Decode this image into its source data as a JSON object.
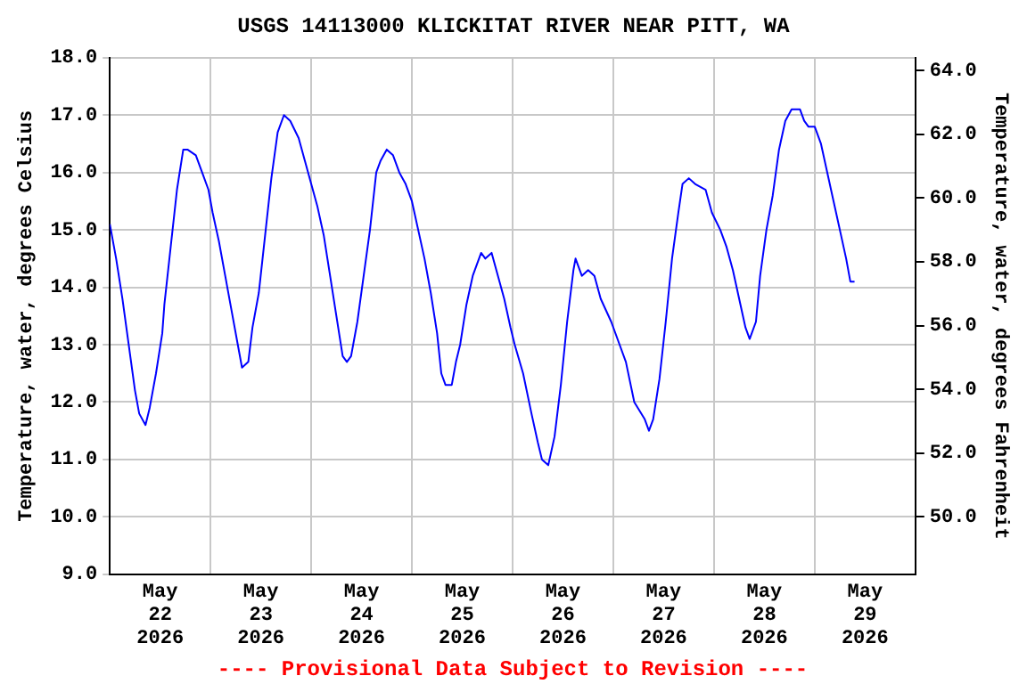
{
  "chart_data": {
    "type": "line",
    "title": "USGS 14113000 KLICKITAT RIVER NEAR PITT, WA",
    "ylabel": "Temperature, water, degrees Celsius",
    "y2label": "Temperature, water, degrees Fahrenheit",
    "annotations": [
      "---- Provisional Data Subject to Revision ----"
    ],
    "x": [
      "2026-05-22T00:00",
      "2026-05-22T01:30",
      "2026-05-22T03:00",
      "2026-05-22T04:30",
      "2026-05-22T06:00",
      "2026-05-22T07:00",
      "2026-05-22T08:30",
      "2026-05-22T09:30",
      "2026-05-22T11:00",
      "2026-05-22T12:30",
      "2026-05-22T13:00",
      "2026-05-22T14:30",
      "2026-05-22T16:00",
      "2026-05-22T17:30",
      "2026-05-22T18:30",
      "2026-05-22T20:30",
      "2026-05-22T22:00",
      "2026-05-22T23:30",
      "2026-05-23T00:30",
      "2026-05-23T02:00",
      "2026-05-23T03:30",
      "2026-05-23T05:00",
      "2026-05-23T06:30",
      "2026-05-23T07:30",
      "2026-05-23T09:00",
      "2026-05-23T10:00",
      "2026-05-23T11:30",
      "2026-05-23T13:00",
      "2026-05-23T14:30",
      "2026-05-23T16:00",
      "2026-05-23T17:30",
      "2026-05-23T19:00",
      "2026-05-23T21:00",
      "2026-05-23T22:30",
      "2026-05-24T00:00",
      "2026-05-24T01:30",
      "2026-05-24T03:00",
      "2026-05-24T04:30",
      "2026-05-24T06:00",
      "2026-05-24T07:30",
      "2026-05-24T08:30",
      "2026-05-24T09:30",
      "2026-05-24T11:00",
      "2026-05-24T12:30",
      "2026-05-24T14:00",
      "2026-05-24T15:30",
      "2026-05-24T16:30",
      "2026-05-24T18:00",
      "2026-05-24T19:30",
      "2026-05-24T21:00",
      "2026-05-24T22:30",
      "2026-05-25T00:00",
      "2026-05-25T01:30",
      "2026-05-25T03:00",
      "2026-05-25T04:30",
      "2026-05-25T06:00",
      "2026-05-25T07:00",
      "2026-05-25T08:00",
      "2026-05-25T09:30",
      "2026-05-25T10:30",
      "2026-05-25T11:30",
      "2026-05-25T13:00",
      "2026-05-25T14:30",
      "2026-05-25T16:30",
      "2026-05-25T17:30",
      "2026-05-25T19:00",
      "2026-05-25T20:30",
      "2026-05-25T22:00",
      "2026-05-25T23:30",
      "2026-05-26T00:30",
      "2026-05-26T02:30",
      "2026-05-26T04:30",
      "2026-05-26T06:00",
      "2026-05-26T07:00",
      "2026-05-26T08:30",
      "2026-05-26T10:00",
      "2026-05-26T11:30",
      "2026-05-26T13:00",
      "2026-05-26T14:30",
      "2026-05-26T15:00",
      "2026-05-26T16:30",
      "2026-05-26T18:00",
      "2026-05-26T19:30",
      "2026-05-26T21:00",
      "2026-05-26T23:30",
      "2026-05-27T01:30",
      "2026-05-27T03:00",
      "2026-05-27T05:00",
      "2026-05-27T07:30",
      "2026-05-27T08:30",
      "2026-05-27T09:30",
      "2026-05-27T11:00",
      "2026-05-27T12:30",
      "2026-05-27T14:00",
      "2026-05-27T15:30",
      "2026-05-27T16:30",
      "2026-05-27T18:00",
      "2026-05-27T19:30",
      "2026-05-27T22:00",
      "2026-05-27T23:30",
      "2026-05-28T01:30",
      "2026-05-28T03:00",
      "2026-05-28T04:30",
      "2026-05-28T06:00",
      "2026-05-28T07:30",
      "2026-05-28T08:30",
      "2026-05-28T10:00",
      "2026-05-28T11:00",
      "2026-05-28T12:30",
      "2026-05-28T14:00",
      "2026-05-28T15:30",
      "2026-05-28T17:00",
      "2026-05-28T18:30",
      "2026-05-28T20:30",
      "2026-05-28T21:30",
      "2026-05-28T22:30",
      "2026-05-29T00:00",
      "2026-05-29T01:30",
      "2026-05-29T03:00",
      "2026-05-29T04:30",
      "2026-05-29T06:00",
      "2026-05-29T07:30",
      "2026-05-29T08:30",
      "2026-05-29T09:30"
    ],
    "series": [
      {
        "color": "#0000ff",
        "values": [
          15.1,
          14.5,
          13.8,
          13.0,
          12.2,
          11.8,
          11.6,
          11.9,
          12.5,
          13.2,
          13.7,
          14.7,
          15.7,
          16.4,
          16.4,
          16.3,
          16.0,
          15.7,
          15.3,
          14.8,
          14.2,
          13.6,
          13.0,
          12.6,
          12.7,
          13.3,
          13.9,
          14.9,
          15.9,
          16.7,
          17.0,
          16.9,
          16.6,
          16.2,
          15.8,
          15.4,
          14.9,
          14.2,
          13.5,
          12.8,
          12.7,
          12.8,
          13.4,
          14.2,
          15.0,
          16.0,
          16.2,
          16.4,
          16.3,
          16.0,
          15.8,
          15.5,
          15.0,
          14.5,
          13.9,
          13.2,
          12.5,
          12.3,
          12.3,
          12.7,
          13.0,
          13.7,
          14.2,
          14.6,
          14.5,
          14.6,
          14.2,
          13.8,
          13.3,
          13.0,
          12.5,
          11.8,
          11.3,
          11.0,
          10.9,
          11.4,
          12.3,
          13.4,
          14.3,
          14.5,
          14.2,
          14.3,
          14.2,
          13.8,
          13.4,
          13.0,
          12.7,
          12.0,
          11.7,
          11.5,
          11.7,
          12.4,
          13.4,
          14.5,
          15.3,
          15.8,
          15.9,
          15.8,
          15.7,
          15.3,
          15.0,
          14.7,
          14.3,
          13.8,
          13.3,
          13.1,
          13.4,
          14.2,
          15.0,
          15.6,
          16.4,
          16.9,
          17.1,
          17.1,
          16.9,
          16.8,
          16.8,
          16.5,
          16.0,
          15.5,
          15.0,
          14.5,
          14.1,
          14.1
        ]
      }
    ],
    "xlim": [
      "2026-05-22T00:00",
      "2026-05-30T00:00"
    ],
    "xticks": [
      {
        "value": "2026-05-22T12:00",
        "label": "May\n22\n2026"
      },
      {
        "value": "2026-05-23T00:00",
        "label": null
      },
      {
        "value": "2026-05-23T12:00",
        "label": "May\n23\n2026"
      },
      {
        "value": "2026-05-24T00:00",
        "label": null
      },
      {
        "value": "2026-05-24T12:00",
        "label": "May\n24\n2026"
      },
      {
        "value": "2026-05-25T00:00",
        "label": null
      },
      {
        "value": "2026-05-25T12:00",
        "label": "May\n25\n2026"
      },
      {
        "value": "2026-05-26T00:00",
        "label": null
      },
      {
        "value": "2026-05-26T12:00",
        "label": "May\n26\n2026"
      },
      {
        "value": "2026-05-27T00:00",
        "label": null
      },
      {
        "value": "2026-05-27T12:00",
        "label": "May\n27\n2026"
      },
      {
        "value": "2026-05-28T00:00",
        "label": null
      },
      {
        "value": "2026-05-28T12:00",
        "label": "May\n28\n2026"
      },
      {
        "value": "2026-05-29T00:00",
        "label": null
      },
      {
        "value": "2026-05-29T12:00",
        "label": "May\n29\n2026"
      }
    ],
    "ylim": [
      9,
      18
    ],
    "yticks": [
      {
        "value": 9,
        "label": "9.0"
      },
      {
        "value": 10,
        "label": "10.0"
      },
      {
        "value": 11,
        "label": "11.0"
      },
      {
        "value": 12,
        "label": "12.0"
      },
      {
        "value": 13,
        "label": "13.0"
      },
      {
        "value": 14,
        "label": "14.0"
      },
      {
        "value": 15,
        "label": "15.0"
      },
      {
        "value": 16,
        "label": "16.0"
      },
      {
        "value": 17,
        "label": "17.0"
      },
      {
        "value": 18,
        "label": "18.0"
      }
    ],
    "y2lim": [
      48.2,
      64.4
    ],
    "y2ticks": [
      {
        "value": 50,
        "label": "50.0"
      },
      {
        "value": 52,
        "label": "52.0"
      },
      {
        "value": 54,
        "label": "54.0"
      },
      {
        "value": 56,
        "label": "56.0"
      },
      {
        "value": 58,
        "label": "58.0"
      },
      {
        "value": 60,
        "label": "60.0"
      },
      {
        "value": 62,
        "label": "62.0"
      },
      {
        "value": 64,
        "label": "64.0"
      }
    ],
    "grid": true,
    "legend": false,
    "marker": "none",
    "line_style": "solid"
  }
}
